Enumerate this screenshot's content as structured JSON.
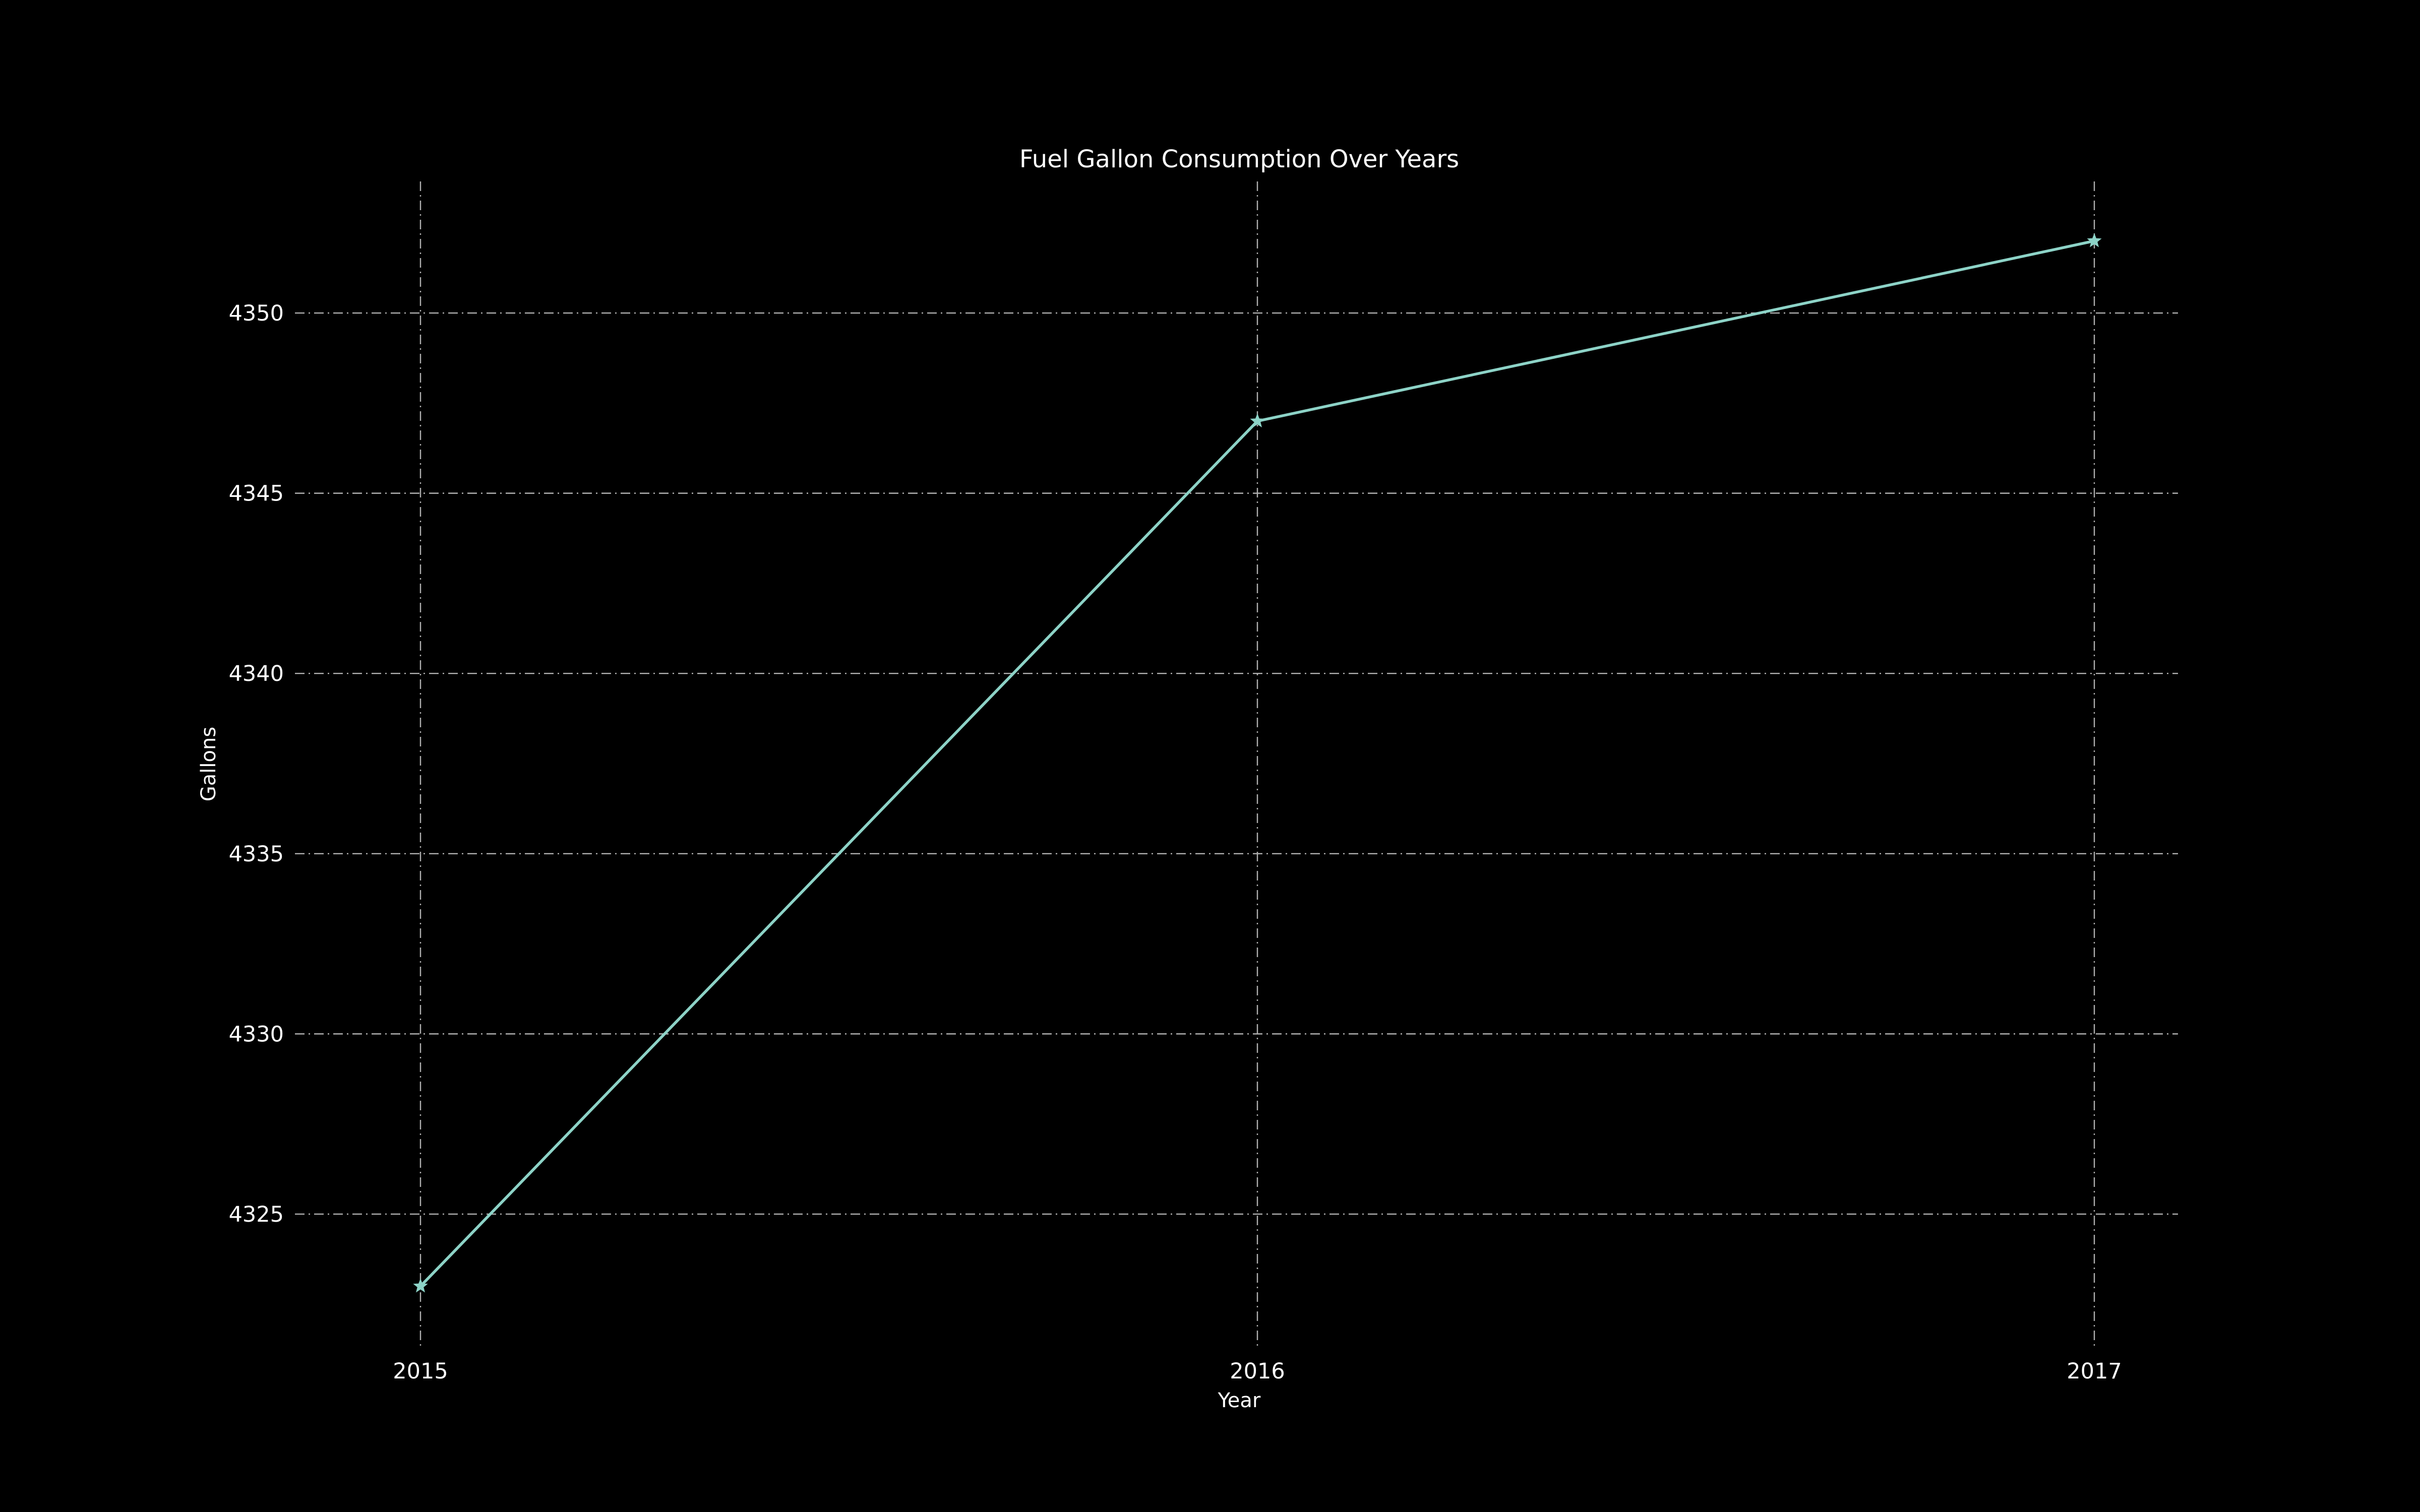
{
  "chart_data": {
    "type": "line",
    "title": "Fuel Gallon Consumption Over Years",
    "xlabel": "Year",
    "ylabel": "Gallons",
    "x": [
      2015,
      2016,
      2017
    ],
    "xticks": [
      "2015",
      "2016",
      "2017"
    ],
    "yticks": [
      4325,
      4330,
      4335,
      4340,
      4345,
      4350
    ],
    "xlim": [
      2014.85,
      2017.1
    ],
    "ylim": [
      4321.35,
      4353.65
    ],
    "grid": true,
    "marker": "star",
    "series": [
      {
        "values": [
          4323,
          4347,
          4352
        ],
        "color": "#8dd3c7"
      }
    ],
    "colors": {
      "background": "#000000",
      "text": "#ffffff",
      "grid": "#b0b0b0"
    }
  }
}
